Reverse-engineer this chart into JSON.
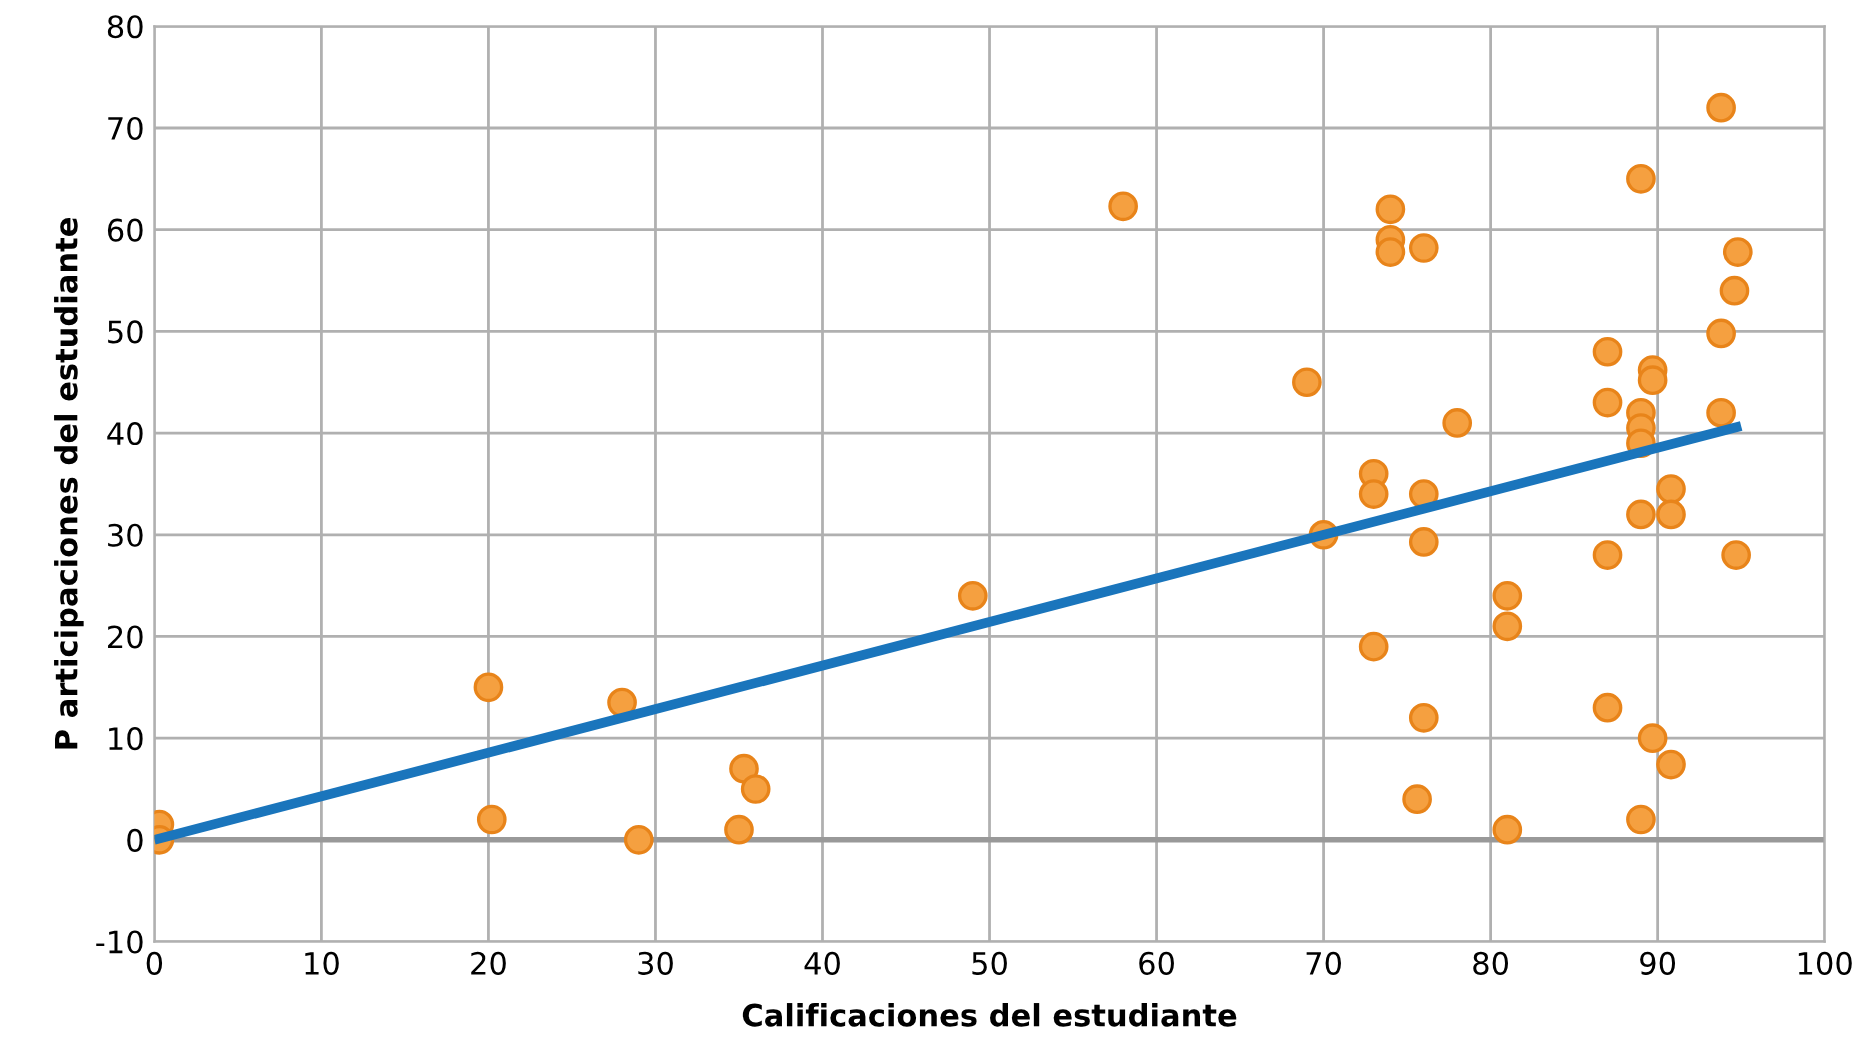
{
  "chart_data": {
    "type": "scatter",
    "xlabel": "Calificaciones del estudiante",
    "ylabel": "P articipaciones del estudiante",
    "xlim": [
      0,
      100
    ],
    "xticks": [
      0,
      10,
      20,
      30,
      40,
      50,
      60,
      70,
      80,
      90,
      100
    ],
    "ylim": [
      -10,
      80
    ],
    "yticks": [
      -10,
      0,
      10,
      20,
      30,
      40,
      50,
      60,
      70,
      80
    ],
    "grid": true,
    "marker": "circle",
    "ref_lines": [
      {
        "axis": "y",
        "value": 0,
        "color": "#999999"
      }
    ],
    "series": [
      {
        "color": "#f5a040",
        "x": [
          0.3,
          0.3,
          20,
          20.2,
          28,
          29,
          35,
          35.3,
          36,
          49,
          58,
          69,
          70,
          73,
          73,
          73,
          74,
          74,
          74,
          75.6,
          76,
          76,
          76,
          76,
          78,
          81,
          81,
          81,
          87,
          87,
          87,
          87,
          89,
          89,
          89,
          89,
          89,
          89,
          89.7,
          89.7,
          89.7,
          90.8,
          90.8,
          90.8,
          93.8,
          93.8,
          93.8,
          94.8,
          94.6,
          94.7
        ],
        "values": [
          1.5,
          0,
          15,
          2,
          13.5,
          0,
          1,
          7,
          5,
          24,
          62.3,
          45,
          30,
          36,
          34,
          19,
          62,
          59,
          57.8,
          4,
          58.2,
          34,
          29.3,
          12,
          41,
          24,
          21,
          1,
          48,
          43,
          28,
          13,
          65,
          42,
          40.5,
          39,
          32,
          2,
          46.2,
          45.2,
          10,
          34.5,
          32,
          7.4,
          72,
          49.8,
          42,
          57.8,
          54,
          28
        ]
      },
      {
        "type": "line",
        "color": "#1a75bc",
        "marker": "none",
        "x": [
          0,
          95
        ],
        "values": [
          0,
          40.7
        ]
      }
    ]
  }
}
